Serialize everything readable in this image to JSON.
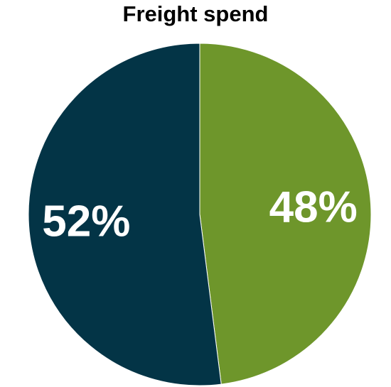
{
  "chart_data": {
    "type": "pie",
    "title": "Freight spend",
    "slices": [
      {
        "label": "48%",
        "value": 48,
        "color": "#6e962b"
      },
      {
        "label": "52%",
        "value": 52,
        "color": "#033446"
      }
    ],
    "start": "top",
    "direction": "clockwise",
    "legend": "none"
  }
}
